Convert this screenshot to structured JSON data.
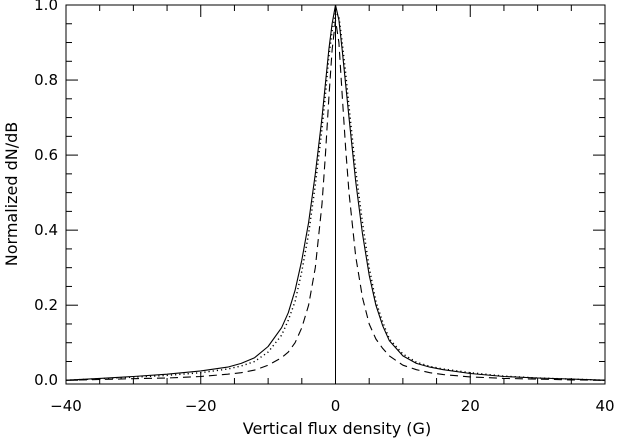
{
  "chart_data": {
    "type": "line",
    "xlabel": "Vertical flux density (G)",
    "ylabel": "Normalized dN/dB",
    "xlim": [
      -40,
      40
    ],
    "ylim": [
      -0.01,
      1.0
    ],
    "x_ticks": [
      "−40",
      "−20",
      "0",
      "20",
      "40"
    ],
    "y_ticks": [
      "0.0",
      "0.2",
      "0.4",
      "0.6",
      "0.8",
      "1.0"
    ],
    "grid": false,
    "legend": "none",
    "vertical_reference_line_x": 0,
    "series": [
      {
        "style": "solid",
        "x": [
          -40,
          -35,
          -30,
          -25,
          -20,
          -16,
          -14,
          -12,
          -10,
          -8,
          -7,
          -6,
          -5,
          -4,
          -3,
          -2,
          -1.5,
          -1,
          -0.5,
          0,
          0.5,
          1,
          1.5,
          2,
          3,
          4,
          5,
          6,
          7,
          8,
          10,
          12,
          14,
          16,
          20,
          25,
          30,
          35,
          40
        ],
        "y": [
          0.0,
          0.005,
          0.01,
          0.016,
          0.025,
          0.035,
          0.045,
          0.06,
          0.09,
          0.14,
          0.18,
          0.24,
          0.32,
          0.42,
          0.55,
          0.7,
          0.79,
          0.88,
          0.95,
          1.0,
          0.96,
          0.88,
          0.79,
          0.7,
          0.53,
          0.39,
          0.28,
          0.2,
          0.145,
          0.105,
          0.065,
          0.045,
          0.035,
          0.028,
          0.018,
          0.01,
          0.006,
          0.003,
          0.0
        ]
      },
      {
        "style": "dotted",
        "x": [
          -40,
          -35,
          -30,
          -25,
          -20,
          -16,
          -14,
          -12,
          -10,
          -8,
          -7,
          -6,
          -5,
          -4,
          -3,
          -2,
          -1.5,
          -1,
          -0.5,
          0,
          0.5,
          1,
          1.5,
          2,
          3,
          4,
          5,
          6,
          7,
          8,
          10,
          12,
          14,
          16,
          20,
          25,
          30,
          35,
          40
        ],
        "y": [
          0.0,
          0.004,
          0.008,
          0.013,
          0.02,
          0.03,
          0.038,
          0.05,
          0.075,
          0.12,
          0.16,
          0.21,
          0.29,
          0.39,
          0.52,
          0.67,
          0.76,
          0.86,
          0.93,
          0.98,
          0.97,
          0.9,
          0.82,
          0.73,
          0.56,
          0.42,
          0.3,
          0.21,
          0.155,
          0.11,
          0.07,
          0.048,
          0.037,
          0.03,
          0.02,
          0.011,
          0.006,
          0.003,
          0.0
        ]
      },
      {
        "style": "dashed",
        "x": [
          -40,
          -35,
          -30,
          -25,
          -20,
          -16,
          -14,
          -12,
          -10,
          -8,
          -7,
          -6,
          -5,
          -4,
          -3,
          -2,
          -1.5,
          -1,
          -0.5,
          0,
          0.5,
          1,
          1.5,
          2,
          3,
          4,
          5,
          6,
          7,
          8,
          10,
          12,
          14,
          16,
          20,
          25,
          30,
          35,
          40
        ],
        "y": [
          0.0,
          0.002,
          0.004,
          0.006,
          0.01,
          0.016,
          0.02,
          0.027,
          0.04,
          0.06,
          0.075,
          0.1,
          0.14,
          0.2,
          0.3,
          0.47,
          0.6,
          0.75,
          0.88,
          0.96,
          0.9,
          0.76,
          0.62,
          0.5,
          0.33,
          0.22,
          0.15,
          0.11,
          0.085,
          0.065,
          0.04,
          0.028,
          0.02,
          0.015,
          0.009,
          0.005,
          0.003,
          0.001,
          0.0
        ]
      }
    ]
  }
}
